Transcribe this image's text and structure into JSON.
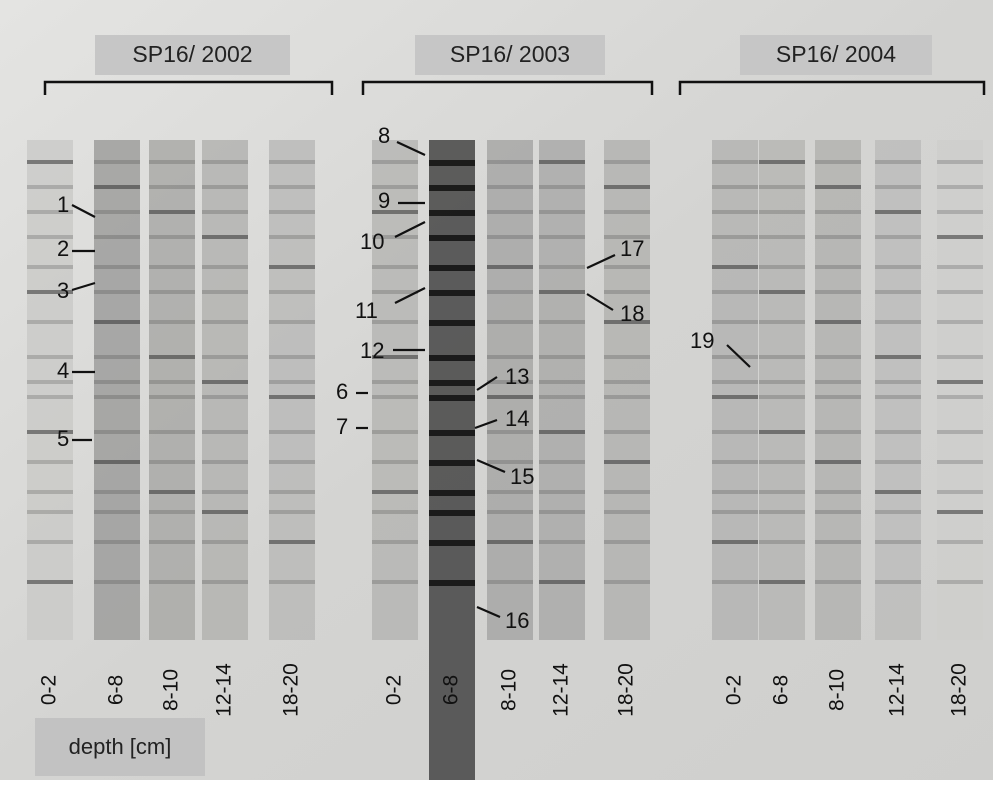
{
  "groups": [
    {
      "title": "SP16/ 2002",
      "lanes": [
        "0-2",
        "6-8",
        "8-10",
        "12-14",
        "18-20"
      ]
    },
    {
      "title": "SP16/ 2003",
      "lanes": [
        "0-2",
        "6-8",
        "8-10",
        "12-14",
        "18-20"
      ]
    },
    {
      "title": "SP16/ 2004",
      "lanes": [
        "0-2",
        "6-8",
        "8-10",
        "12-14",
        "18-20"
      ]
    }
  ],
  "band_labels": [
    "1",
    "2",
    "3",
    "4",
    "5",
    "6",
    "7",
    "8",
    "9",
    "10",
    "11",
    "12",
    "13",
    "14",
    "15",
    "16",
    "17",
    "18",
    "19"
  ],
  "axis_label": "depth [cm]"
}
